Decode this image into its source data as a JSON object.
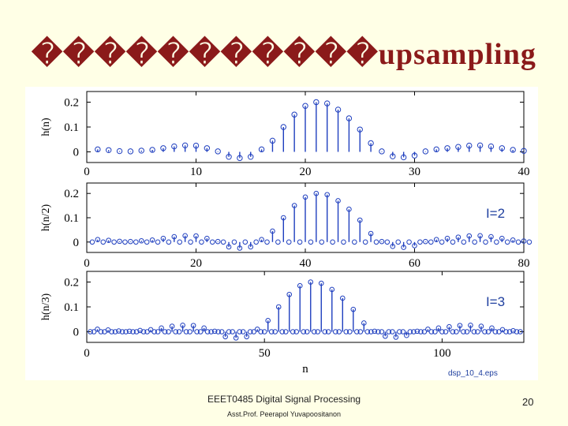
{
  "slide": {
    "title": "�����������upsampling",
    "caption": "dsp_10_4.eps",
    "footer_course": "EEET0485 Digital Signal Processing",
    "footer_author": "Asst.Prof. Peerapol Yuvapoositanon",
    "page_number": "20",
    "title_color": "#8b1a1a",
    "stem_color": "#1f3fbf"
  },
  "chart_data": [
    {
      "type": "stem",
      "ylabel": "h(n)",
      "xlim": [
        0,
        40
      ],
      "ylim": [
        0,
        0.2
      ],
      "xticks": [
        "0",
        "10",
        "20",
        "30",
        "40"
      ],
      "yticks": [
        "0",
        "0.1",
        "0.2"
      ],
      "annotation": "",
      "x": [
        1,
        2,
        3,
        4,
        5,
        6,
        7,
        8,
        9,
        10,
        11,
        12,
        13,
        14,
        15,
        16,
        17,
        18,
        19,
        20,
        21,
        22,
        23,
        24,
        25,
        26,
        27,
        28,
        29,
        30,
        31,
        32,
        33,
        34,
        35,
        36,
        37,
        38,
        39,
        40
      ],
      "values": [
        0.01,
        0.007,
        0.003,
        0.002,
        0.005,
        0.008,
        0.015,
        0.022,
        0.026,
        0.025,
        0.015,
        0.002,
        -0.02,
        -0.025,
        -0.02,
        0.01,
        0.045,
        0.1,
        0.15,
        0.185,
        0.2,
        0.195,
        0.17,
        0.135,
        0.09,
        0.035,
        0.002,
        -0.018,
        -0.022,
        -0.015,
        0.002,
        0.01,
        0.015,
        0.02,
        0.025,
        0.026,
        0.022,
        0.015,
        0.008,
        0.004
      ]
    },
    {
      "type": "stem",
      "ylabel": "h(n/2)",
      "xlim": [
        0,
        80
      ],
      "ylim": [
        0,
        0.2
      ],
      "xticks": [
        "0",
        "20",
        "40",
        "60",
        "80"
      ],
      "yticks": [
        "0",
        "0.1",
        "0.2"
      ],
      "annotation": "I=2",
      "x": [
        1,
        2,
        3,
        4,
        5,
        6,
        7,
        8,
        9,
        10,
        11,
        12,
        13,
        14,
        15,
        16,
        17,
        18,
        19,
        20,
        21,
        22,
        23,
        24,
        25,
        26,
        27,
        28,
        29,
        30,
        31,
        32,
        33,
        34,
        35,
        36,
        37,
        38,
        39,
        40,
        41,
        42,
        43,
        44,
        45,
        46,
        47,
        48,
        49,
        50,
        51,
        52,
        53,
        54,
        55,
        56,
        57,
        58,
        59,
        60,
        61,
        62,
        63,
        64,
        65,
        66,
        67,
        68,
        69,
        70,
        71,
        72,
        73,
        74,
        75,
        76,
        77,
        78,
        79,
        80,
        81
      ],
      "values": [
        0,
        0.01,
        0,
        0.007,
        0,
        0.003,
        0,
        0.002,
        0,
        0.005,
        0,
        0.008,
        0,
        0.015,
        0,
        0.022,
        0,
        0.026,
        0,
        0.025,
        0,
        0.015,
        0,
        0.002,
        0,
        -0.02,
        0,
        -0.025,
        0,
        -0.02,
        0,
        0.01,
        0,
        0.045,
        0,
        0.1,
        0,
        0.15,
        0,
        0.185,
        0,
        0.2,
        0,
        0.195,
        0,
        0.17,
        0,
        0.135,
        0,
        0.09,
        0,
        0.035,
        0,
        0.002,
        0,
        -0.018,
        0,
        -0.022,
        0,
        -0.015,
        0,
        0.002,
        0,
        0.01,
        0,
        0.015,
        0,
        0.02,
        0,
        0.025,
        0,
        0.026,
        0,
        0.022,
        0,
        0.015,
        0,
        0.008,
        0,
        0.004,
        0
      ]
    },
    {
      "type": "stem",
      "ylabel": "h(n/3)",
      "xlim": [
        0,
        123
      ],
      "ylim": [
        0,
        0.2
      ],
      "xticks": [
        "0",
        "50",
        "100"
      ],
      "yticks": [
        "0",
        "0.1",
        "0.2"
      ],
      "xlabel": "n",
      "annotation": "I=3",
      "x": [
        1,
        2,
        3,
        4,
        5,
        6,
        7,
        8,
        9,
        10,
        11,
        12,
        13,
        14,
        15,
        16,
        17,
        18,
        19,
        20,
        21,
        22,
        23,
        24,
        25,
        26,
        27,
        28,
        29,
        30,
        31,
        32,
        33,
        34,
        35,
        36,
        37,
        38,
        39,
        40,
        41,
        42,
        43,
        44,
        45,
        46,
        47,
        48,
        49,
        50,
        51,
        52,
        53,
        54,
        55,
        56,
        57,
        58,
        59,
        60,
        61,
        62,
        63,
        64,
        65,
        66,
        67,
        68,
        69,
        70,
        71,
        72,
        73,
        74,
        75,
        76,
        77,
        78,
        79,
        80,
        81,
        82,
        83,
        84,
        85,
        86,
        87,
        88,
        89,
        90,
        91,
        92,
        93,
        94,
        95,
        96,
        97,
        98,
        99,
        100,
        101,
        102,
        103,
        104,
        105,
        106,
        107,
        108,
        109,
        110,
        111,
        112,
        113,
        114,
        115,
        116,
        117,
        118,
        119,
        120,
        121,
        122
      ],
      "values": [
        0,
        0,
        0.01,
        0,
        0,
        0.007,
        0,
        0,
        0.003,
        0,
        0,
        0.002,
        0,
        0,
        0.005,
        0,
        0,
        0.008,
        0,
        0,
        0.015,
        0,
        0,
        0.022,
        0,
        0,
        0.026,
        0,
        0,
        0.025,
        0,
        0,
        0.015,
        0,
        0,
        0.002,
        0,
        0,
        -0.02,
        0,
        0,
        -0.025,
        0,
        0,
        -0.02,
        0,
        0,
        0.01,
        0,
        0,
        0.045,
        0,
        0,
        0.1,
        0,
        0,
        0.15,
        0,
        0,
        0.185,
        0,
        0,
        0.2,
        0,
        0,
        0.195,
        0,
        0,
        0.17,
        0,
        0,
        0.135,
        0,
        0,
        0.09,
        0,
        0,
        0.035,
        0,
        0,
        0.002,
        0,
        0,
        -0.018,
        0,
        0,
        -0.022,
        0,
        0,
        -0.015,
        0,
        0,
        0.002,
        0,
        0,
        0.01,
        0,
        0,
        0.015,
        0,
        0,
        0.02,
        0,
        0,
        0.025,
        0,
        0,
        0.026,
        0,
        0,
        0.022,
        0,
        0,
        0.015,
        0,
        0,
        0.008,
        0,
        0,
        0.004,
        0,
        0
      ]
    }
  ]
}
